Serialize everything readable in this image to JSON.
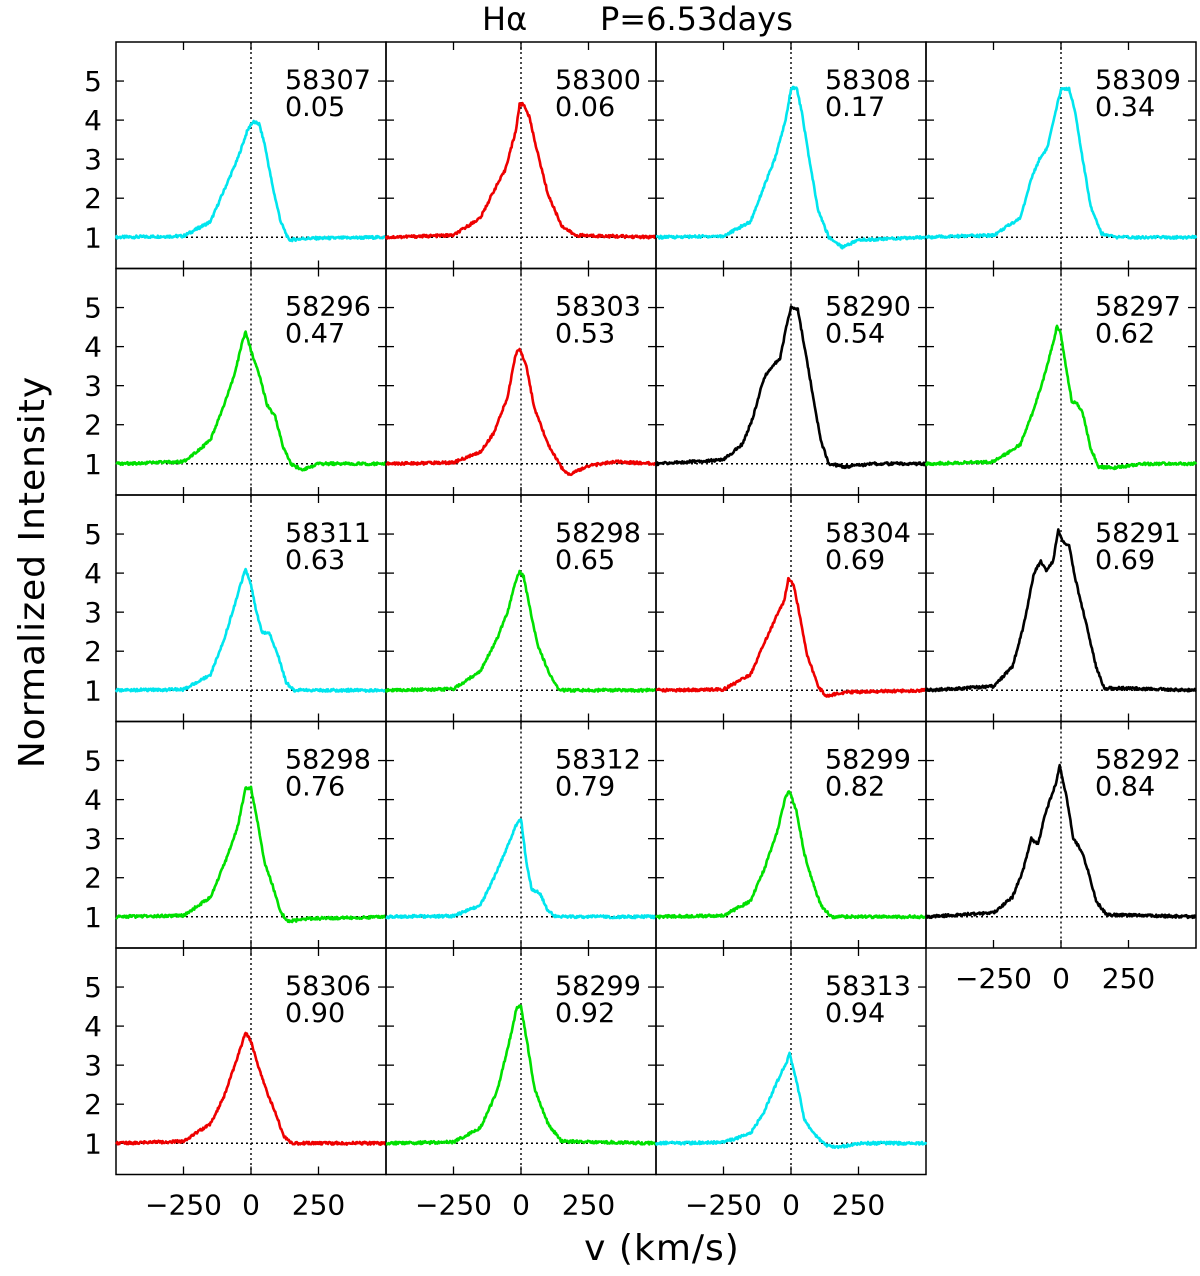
{
  "chart_data": {
    "type": "line",
    "title_line": "Hα",
    "title_period": "P=6.53days",
    "xlabel": "v (km/s)",
    "ylabel": "Normalized Intensity",
    "xlim": [
      -500,
      500
    ],
    "ylim": [
      0.2,
      6.0
    ],
    "yticks": [
      1,
      2,
      3,
      4,
      5
    ],
    "xticks": [
      -250,
      0,
      250
    ],
    "xtick_labels": [
      "−250",
      "0",
      "250"
    ],
    "continuum_level": 1,
    "zero_velocity": 0,
    "series_colors": {
      "cyan": "#00e5ee",
      "red": "#ee0000",
      "green": "#00e000",
      "black": "#000000"
    },
    "panels": [
      {
        "mjd": "58307",
        "phase": "0.05",
        "color": "cyan",
        "profile": [
          [
            -500,
            1.0
          ],
          [
            -250,
            1.03
          ],
          [
            -150,
            1.4
          ],
          [
            -100,
            2.2
          ],
          [
            -50,
            3.0
          ],
          [
            -15,
            3.7
          ],
          [
            0,
            3.9
          ],
          [
            10,
            3.95
          ],
          [
            30,
            3.9
          ],
          [
            50,
            3.4
          ],
          [
            80,
            2.3
          ],
          [
            110,
            1.4
          ],
          [
            140,
            0.93
          ],
          [
            200,
            0.97
          ],
          [
            500,
            1.0
          ]
        ]
      },
      {
        "mjd": "58300",
        "phase": "0.06",
        "color": "red",
        "profile": [
          [
            -500,
            1.0
          ],
          [
            -250,
            1.05
          ],
          [
            -150,
            1.5
          ],
          [
            -100,
            2.2
          ],
          [
            -60,
            2.7
          ],
          [
            -20,
            3.7
          ],
          [
            -5,
            4.4
          ],
          [
            10,
            4.4
          ],
          [
            30,
            4.1
          ],
          [
            60,
            3.2
          ],
          [
            100,
            2.1
          ],
          [
            150,
            1.3
          ],
          [
            200,
            1.05
          ],
          [
            500,
            1.0
          ]
        ]
      },
      {
        "mjd": "58308",
        "phase": "0.17",
        "color": "cyan",
        "profile": [
          [
            -500,
            1.0
          ],
          [
            -250,
            1.03
          ],
          [
            -150,
            1.4
          ],
          [
            -100,
            2.3
          ],
          [
            -60,
            3.0
          ],
          [
            -20,
            4.0
          ],
          [
            0,
            4.8
          ],
          [
            20,
            4.85
          ],
          [
            40,
            4.2
          ],
          [
            70,
            2.9
          ],
          [
            100,
            1.7
          ],
          [
            140,
            1.0
          ],
          [
            190,
            0.75
          ],
          [
            250,
            0.93
          ],
          [
            500,
            1.0
          ]
        ]
      },
      {
        "mjd": "58309",
        "phase": "0.34",
        "color": "cyan",
        "profile": [
          [
            -500,
            1.0
          ],
          [
            -250,
            1.05
          ],
          [
            -150,
            1.5
          ],
          [
            -110,
            2.5
          ],
          [
            -80,
            3.0
          ],
          [
            -50,
            3.3
          ],
          [
            -20,
            4.2
          ],
          [
            0,
            4.8
          ],
          [
            30,
            4.8
          ],
          [
            50,
            4.3
          ],
          [
            80,
            3.0
          ],
          [
            110,
            1.8
          ],
          [
            150,
            1.1
          ],
          [
            200,
            1.0
          ],
          [
            500,
            1.0
          ]
        ]
      },
      {
        "mjd": "58296",
        "phase": "0.47",
        "color": "green",
        "profile": [
          [
            -500,
            1.0
          ],
          [
            -250,
            1.05
          ],
          [
            -150,
            1.6
          ],
          [
            -100,
            2.5
          ],
          [
            -60,
            3.3
          ],
          [
            -30,
            4.2
          ],
          [
            -20,
            4.35
          ],
          [
            0,
            3.9
          ],
          [
            30,
            3.3
          ],
          [
            60,
            2.5
          ],
          [
            90,
            2.2
          ],
          [
            120,
            1.4
          ],
          [
            150,
            0.98
          ],
          [
            190,
            0.85
          ],
          [
            250,
            1.0
          ],
          [
            500,
            1.0
          ]
        ]
      },
      {
        "mjd": "58303",
        "phase": "0.53",
        "color": "red",
        "profile": [
          [
            -500,
            1.0
          ],
          [
            -250,
            1.03
          ],
          [
            -150,
            1.3
          ],
          [
            -100,
            1.8
          ],
          [
            -50,
            2.7
          ],
          [
            -20,
            3.8
          ],
          [
            -5,
            3.95
          ],
          [
            20,
            3.5
          ],
          [
            50,
            2.4
          ],
          [
            100,
            1.5
          ],
          [
            150,
            0.9
          ],
          [
            180,
            0.72
          ],
          [
            250,
            0.95
          ],
          [
            350,
            1.05
          ],
          [
            500,
            1.0
          ]
        ]
      },
      {
        "mjd": "58290",
        "phase": "0.54",
        "color": "black",
        "profile": [
          [
            -500,
            1.0
          ],
          [
            -250,
            1.1
          ],
          [
            -180,
            1.5
          ],
          [
            -140,
            2.2
          ],
          [
            -100,
            3.2
          ],
          [
            -70,
            3.5
          ],
          [
            -40,
            3.7
          ],
          [
            -15,
            4.6
          ],
          [
            0,
            5.0
          ],
          [
            25,
            4.95
          ],
          [
            50,
            4.0
          ],
          [
            80,
            2.8
          ],
          [
            110,
            1.6
          ],
          [
            140,
            1.0
          ],
          [
            200,
            0.92
          ],
          [
            300,
            1.0
          ],
          [
            500,
            1.0
          ]
        ]
      },
      {
        "mjd": "58297",
        "phase": "0.62",
        "color": "green",
        "profile": [
          [
            -500,
            1.0
          ],
          [
            -250,
            1.05
          ],
          [
            -150,
            1.5
          ],
          [
            -100,
            2.4
          ],
          [
            -60,
            3.3
          ],
          [
            -25,
            4.2
          ],
          [
            -15,
            4.55
          ],
          [
            0,
            4.3
          ],
          [
            20,
            3.4
          ],
          [
            40,
            2.6
          ],
          [
            60,
            2.55
          ],
          [
            80,
            2.3
          ],
          [
            110,
            1.4
          ],
          [
            140,
            0.92
          ],
          [
            200,
            0.9
          ],
          [
            300,
            1.0
          ],
          [
            500,
            1.0
          ]
        ]
      },
      {
        "mjd": "58311",
        "phase": "0.63",
        "color": "cyan",
        "profile": [
          [
            -500,
            1.0
          ],
          [
            -250,
            1.02
          ],
          [
            -150,
            1.4
          ],
          [
            -100,
            2.3
          ],
          [
            -60,
            3.2
          ],
          [
            -30,
            3.9
          ],
          [
            -20,
            4.1
          ],
          [
            0,
            3.7
          ],
          [
            20,
            3.0
          ],
          [
            40,
            2.5
          ],
          [
            70,
            2.45
          ],
          [
            100,
            1.9
          ],
          [
            130,
            1.2
          ],
          [
            160,
            1.0
          ],
          [
            500,
            1.0
          ]
        ]
      },
      {
        "mjd": "58298",
        "phase": "0.65",
        "color": "green",
        "profile": [
          [
            -500,
            1.0
          ],
          [
            -250,
            1.03
          ],
          [
            -150,
            1.5
          ],
          [
            -90,
            2.3
          ],
          [
            -50,
            3.0
          ],
          [
            -20,
            3.8
          ],
          [
            -5,
            4.05
          ],
          [
            10,
            3.9
          ],
          [
            30,
            3.2
          ],
          [
            60,
            2.2
          ],
          [
            100,
            1.5
          ],
          [
            140,
            1.0
          ],
          [
            500,
            1.0
          ]
        ]
      },
      {
        "mjd": "58304",
        "phase": "0.69",
        "color": "red",
        "profile": [
          [
            -500,
            1.0
          ],
          [
            -250,
            1.02
          ],
          [
            -150,
            1.4
          ],
          [
            -100,
            2.2
          ],
          [
            -60,
            2.8
          ],
          [
            -25,
            3.3
          ],
          [
            -10,
            3.85
          ],
          [
            10,
            3.7
          ],
          [
            30,
            3.0
          ],
          [
            60,
            1.9
          ],
          [
            100,
            1.1
          ],
          [
            130,
            0.85
          ],
          [
            200,
            0.95
          ],
          [
            500,
            1.0
          ]
        ]
      },
      {
        "mjd": "58291",
        "phase": "0.69",
        "color": "black",
        "profile": [
          [
            -500,
            1.0
          ],
          [
            -250,
            1.1
          ],
          [
            -180,
            1.6
          ],
          [
            -140,
            2.6
          ],
          [
            -100,
            4.0
          ],
          [
            -75,
            4.3
          ],
          [
            -55,
            4.05
          ],
          [
            -30,
            4.3
          ],
          [
            -10,
            5.1
          ],
          [
            5,
            4.8
          ],
          [
            30,
            4.7
          ],
          [
            55,
            3.8
          ],
          [
            90,
            2.8
          ],
          [
            130,
            1.6
          ],
          [
            160,
            1.05
          ],
          [
            250,
            1.05
          ],
          [
            500,
            1.0
          ]
        ]
      },
      {
        "mjd": "58298",
        "phase": "0.76",
        "color": "green",
        "profile": [
          [
            -500,
            1.0
          ],
          [
            -250,
            1.03
          ],
          [
            -150,
            1.5
          ],
          [
            -90,
            2.5
          ],
          [
            -50,
            3.3
          ],
          [
            -20,
            4.3
          ],
          [
            0,
            4.3
          ],
          [
            20,
            3.6
          ],
          [
            50,
            2.4
          ],
          [
            80,
            1.8
          ],
          [
            110,
            1.1
          ],
          [
            140,
            0.88
          ],
          [
            200,
            0.95
          ],
          [
            500,
            1.0
          ]
        ]
      },
      {
        "mjd": "58312",
        "phase": "0.79",
        "color": "cyan",
        "profile": [
          [
            -500,
            1.0
          ],
          [
            -250,
            1.02
          ],
          [
            -150,
            1.3
          ],
          [
            -100,
            2.0
          ],
          [
            -50,
            2.8
          ],
          [
            -15,
            3.4
          ],
          [
            0,
            3.5
          ],
          [
            20,
            2.4
          ],
          [
            40,
            1.7
          ],
          [
            70,
            1.6
          ],
          [
            100,
            1.15
          ],
          [
            130,
            1.0
          ],
          [
            500,
            1.0
          ]
        ]
      },
      {
        "mjd": "58299",
        "phase": "0.82",
        "color": "green",
        "profile": [
          [
            -500,
            1.0
          ],
          [
            -250,
            1.03
          ],
          [
            -150,
            1.4
          ],
          [
            -100,
            2.2
          ],
          [
            -50,
            3.2
          ],
          [
            -20,
            4.1
          ],
          [
            -5,
            4.2
          ],
          [
            20,
            3.7
          ],
          [
            50,
            2.6
          ],
          [
            80,
            1.9
          ],
          [
            110,
            1.3
          ],
          [
            150,
            1.0
          ],
          [
            500,
            1.0
          ]
        ]
      },
      {
        "mjd": "58292",
        "phase": "0.84",
        "color": "black",
        "profile": [
          [
            -500,
            1.0
          ],
          [
            -250,
            1.1
          ],
          [
            -180,
            1.5
          ],
          [
            -140,
            2.2
          ],
          [
            -110,
            3.0
          ],
          [
            -85,
            2.85
          ],
          [
            -60,
            3.6
          ],
          [
            -20,
            4.4
          ],
          [
            -5,
            4.85
          ],
          [
            20,
            4.1
          ],
          [
            45,
            3.0
          ],
          [
            75,
            2.7
          ],
          [
            100,
            2.2
          ],
          [
            130,
            1.4
          ],
          [
            170,
            1.05
          ],
          [
            500,
            1.0
          ]
        ]
      },
      {
        "mjd": "58306",
        "phase": "0.90",
        "color": "red",
        "profile": [
          [
            -500,
            1.0
          ],
          [
            -250,
            1.05
          ],
          [
            -150,
            1.5
          ],
          [
            -100,
            2.2
          ],
          [
            -50,
            3.2
          ],
          [
            -20,
            3.85
          ],
          [
            0,
            3.6
          ],
          [
            30,
            2.9
          ],
          [
            60,
            2.3
          ],
          [
            90,
            1.8
          ],
          [
            120,
            1.2
          ],
          [
            150,
            1.0
          ],
          [
            500,
            1.0
          ]
        ]
      },
      {
        "mjd": "58299",
        "phase": "0.92",
        "color": "green",
        "profile": [
          [
            -500,
            1.0
          ],
          [
            -250,
            1.03
          ],
          [
            -150,
            1.4
          ],
          [
            -90,
            2.3
          ],
          [
            -50,
            3.4
          ],
          [
            -15,
            4.5
          ],
          [
            0,
            4.5
          ],
          [
            20,
            3.7
          ],
          [
            50,
            2.4
          ],
          [
            100,
            1.5
          ],
          [
            150,
            1.05
          ],
          [
            500,
            1.0
          ]
        ]
      },
      {
        "mjd": "58313",
        "phase": "0.94",
        "color": "cyan",
        "profile": [
          [
            -500,
            1.0
          ],
          [
            -250,
            1.02
          ],
          [
            -150,
            1.25
          ],
          [
            -100,
            1.8
          ],
          [
            -50,
            2.6
          ],
          [
            -15,
            3.1
          ],
          [
            -5,
            3.3
          ],
          [
            20,
            2.6
          ],
          [
            50,
            1.6
          ],
          [
            90,
            1.2
          ],
          [
            130,
            0.95
          ],
          [
            180,
            0.9
          ],
          [
            250,
            1.0
          ],
          [
            500,
            1.0
          ]
        ]
      }
    ]
  }
}
